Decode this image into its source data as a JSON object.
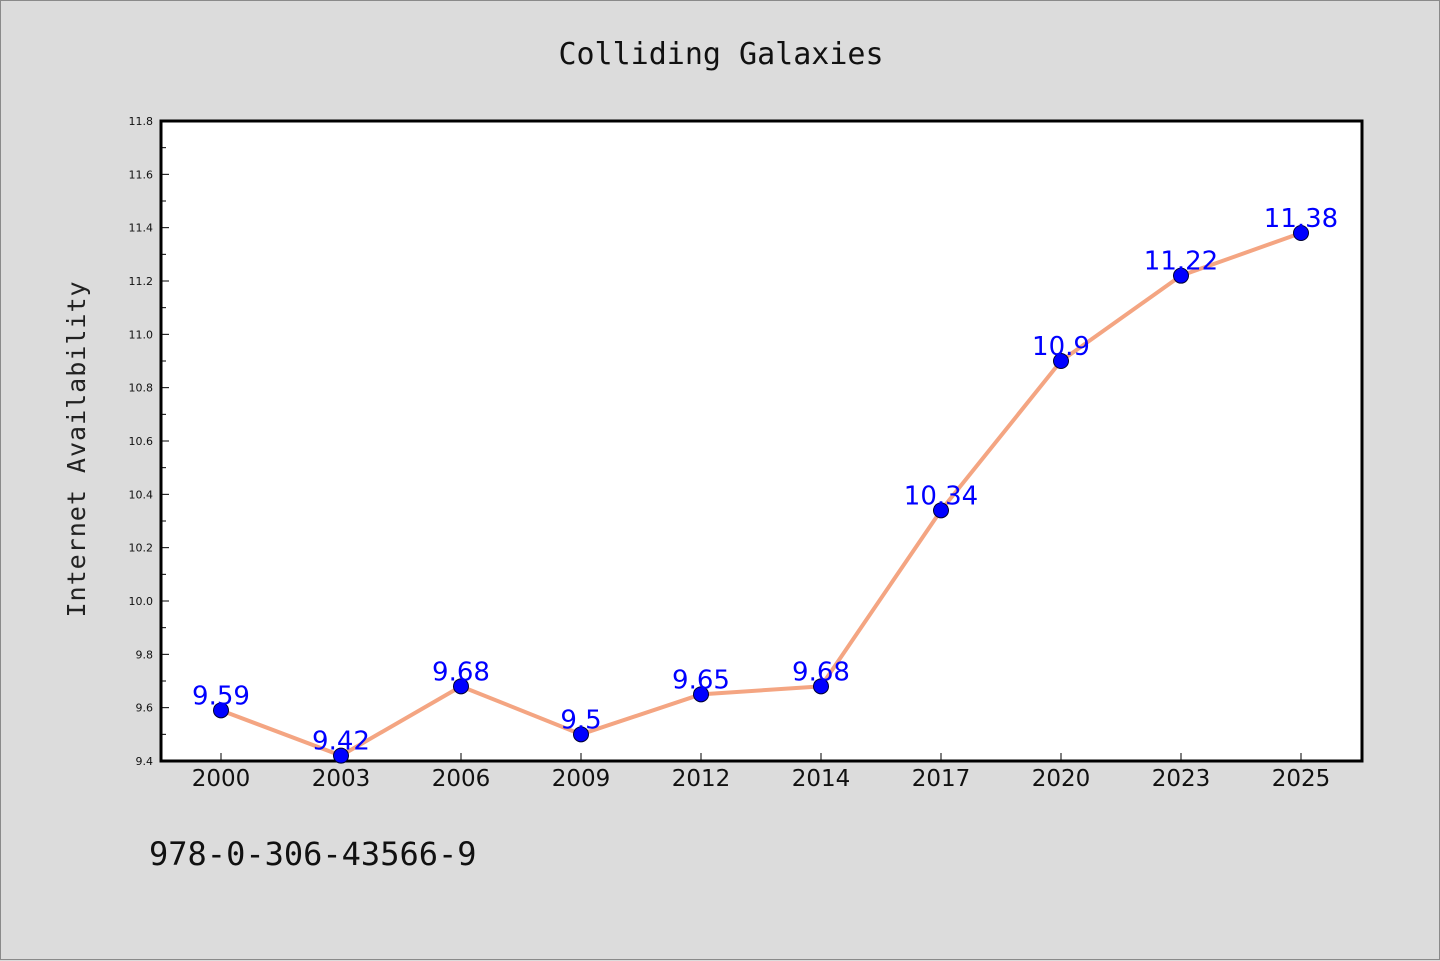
{
  "chart_data": {
    "type": "line",
    "title": "Colliding Galaxies",
    "xlabel": "",
    "ylabel": "Internet Availability",
    "categories": [
      "2000",
      "2003",
      "2006",
      "2009",
      "2012",
      "2014",
      "2017",
      "2020",
      "2023",
      "2025"
    ],
    "series": [
      {
        "values": [
          9.59,
          9.42,
          9.68,
          9.5,
          9.65,
          9.68,
          10.34,
          10.9,
          11.22,
          11.38
        ],
        "labels": [
          "9.59",
          "9.42",
          "9.68",
          "9.5",
          "9.65",
          "9.68",
          "10.34",
          "10.9",
          "11.22",
          "11.38"
        ]
      }
    ],
    "ylim": [
      9.4,
      11.8
    ],
    "yticks": [
      "9.4",
      "9.6",
      "9.8",
      "10.0",
      "10.2",
      "10.4",
      "10.6",
      "10.8",
      "11.0",
      "11.2",
      "11.4",
      "11.6",
      "11.8"
    ],
    "grid": false,
    "line_color": "#f4a582",
    "marker_color": "#0000ff",
    "label_color": "#0000ff"
  },
  "footer_text": "978-0-306-43566-9",
  "colors": {
    "background": "#dcdcdc",
    "plot_background": "#ffffff"
  }
}
